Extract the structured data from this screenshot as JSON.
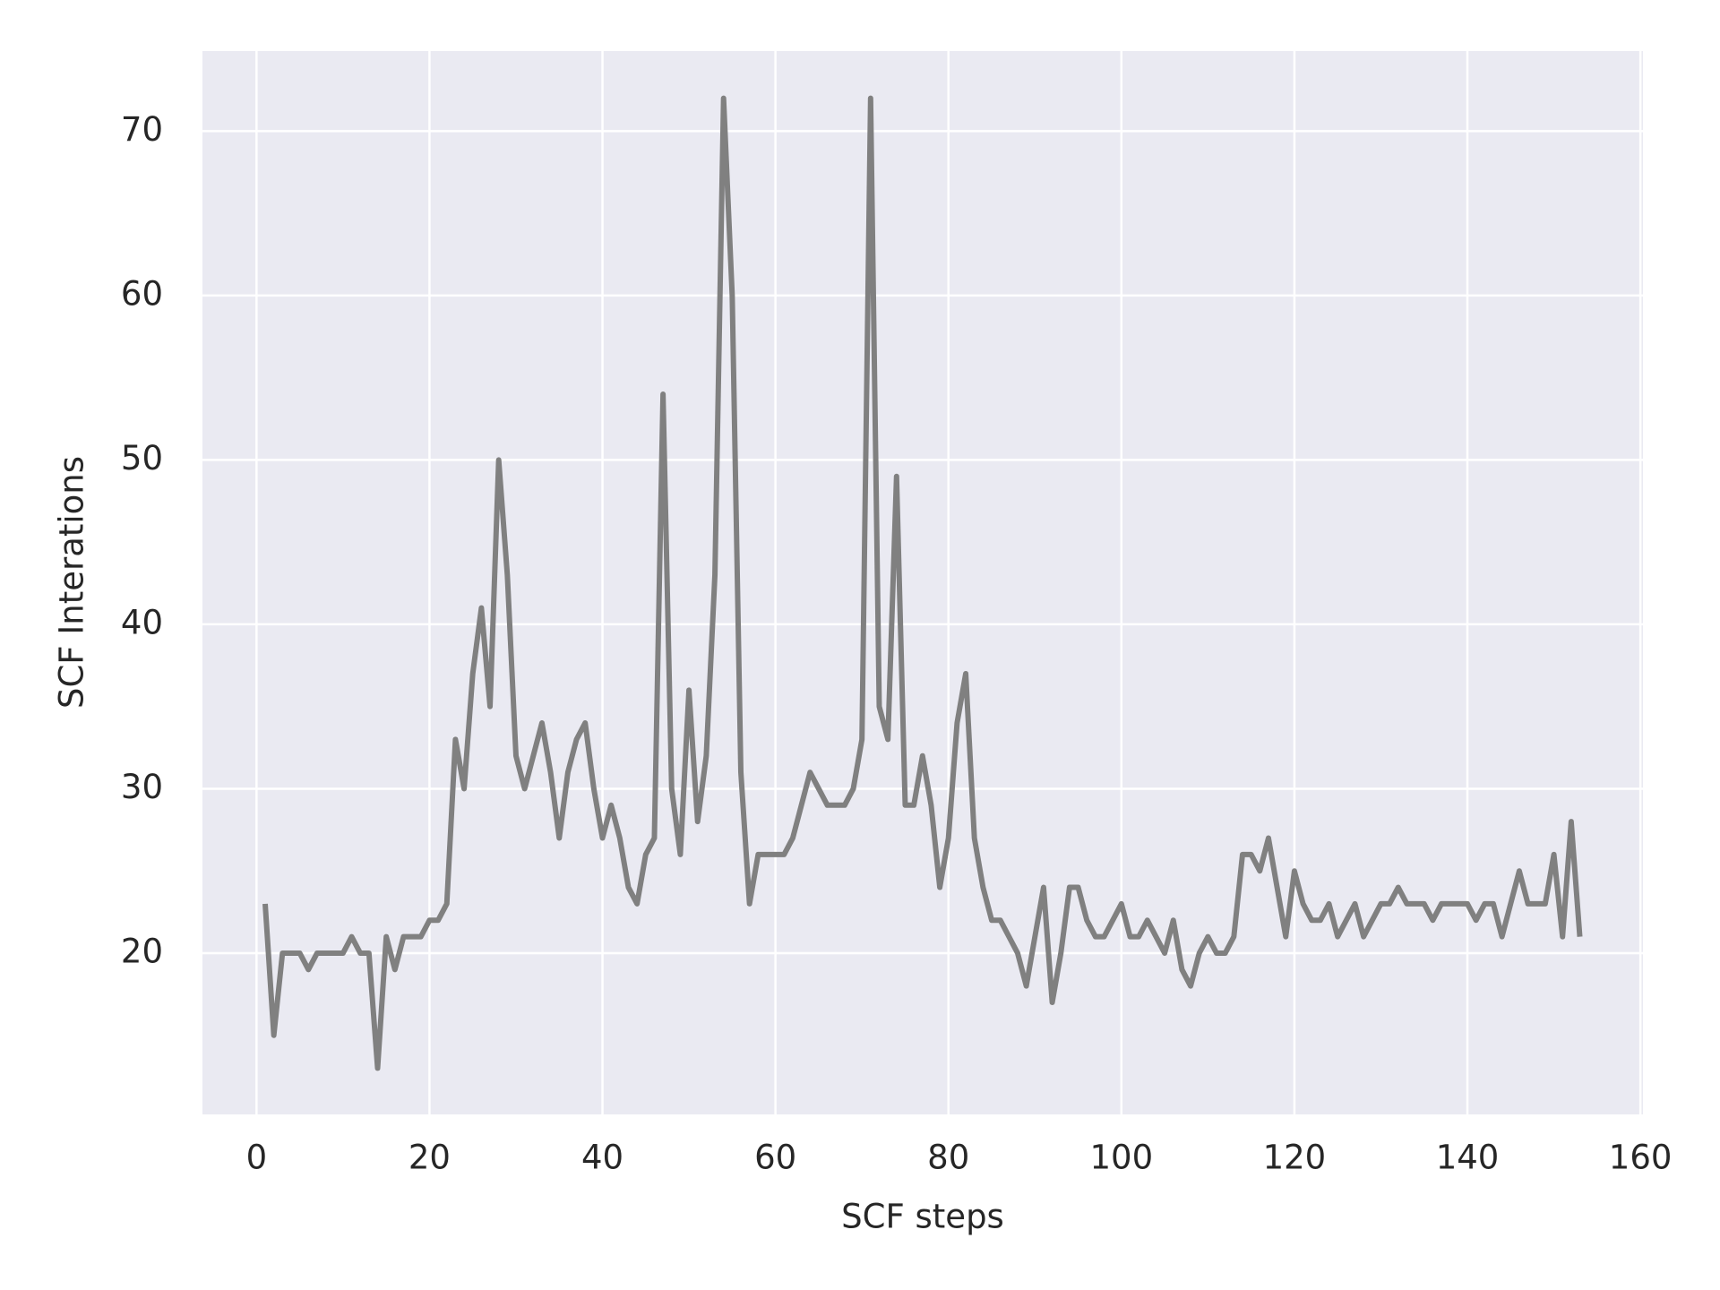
{
  "chart_data": {
    "type": "line",
    "xlabel": "SCF steps",
    "ylabel": "SCF Interations",
    "x": [
      1,
      2,
      3,
      4,
      5,
      6,
      7,
      8,
      9,
      10,
      11,
      12,
      13,
      14,
      15,
      16,
      17,
      18,
      19,
      20,
      21,
      22,
      23,
      24,
      25,
      26,
      27,
      28,
      29,
      30,
      31,
      32,
      33,
      34,
      35,
      36,
      37,
      38,
      39,
      40,
      41,
      42,
      43,
      44,
      45,
      46,
      47,
      48,
      49,
      50,
      51,
      52,
      53,
      54,
      55,
      56,
      57,
      58,
      59,
      60,
      61,
      62,
      63,
      64,
      65,
      66,
      67,
      68,
      69,
      70,
      71,
      72,
      73,
      74,
      75,
      76,
      77,
      78,
      79,
      80,
      81,
      82,
      83,
      84,
      85,
      86,
      87,
      88,
      89,
      90,
      91,
      92,
      93,
      94,
      95,
      96,
      97,
      98,
      99,
      100,
      101,
      102,
      103,
      104,
      105,
      106,
      107,
      108,
      109,
      110,
      111,
      112,
      113,
      114,
      115,
      116,
      117,
      118,
      119,
      120,
      121,
      122,
      123,
      124,
      125,
      126,
      127,
      128,
      129,
      130,
      131,
      132,
      133,
      134,
      135,
      136,
      137,
      138,
      139,
      140,
      141,
      142,
      143,
      144,
      145,
      146,
      147,
      148,
      149,
      150,
      151,
      152,
      153
    ],
    "values": [
      23,
      15,
      20,
      20,
      20,
      19,
      20,
      20,
      20,
      20,
      21,
      20,
      20,
      13,
      21,
      19,
      21,
      21,
      21,
      22,
      22,
      23,
      33,
      30,
      37,
      41,
      35,
      50,
      43,
      32,
      30,
      32,
      34,
      31,
      27,
      31,
      33,
      34,
      30,
      27,
      29,
      27,
      24,
      23,
      26,
      27,
      54,
      30,
      26,
      36,
      28,
      32,
      43,
      72,
      60,
      31,
      23,
      26,
      26,
      26,
      26,
      27,
      29,
      31,
      30,
      29,
      29,
      29,
      30,
      33,
      72,
      35,
      33,
      49,
      29,
      29,
      32,
      29,
      24,
      27,
      34,
      37,
      27,
      24,
      22,
      22,
      21,
      20,
      18,
      21,
      24,
      17,
      20,
      24,
      24,
      22,
      21,
      21,
      22,
      23,
      21,
      21,
      22,
      21,
      20,
      22,
      19,
      18,
      20,
      21,
      20,
      20,
      21,
      26,
      26,
      25,
      27,
      24,
      21,
      25,
      23,
      22,
      22,
      23,
      21,
      22,
      23,
      21,
      22,
      23,
      23,
      24,
      23,
      23,
      23,
      22,
      23,
      23,
      23,
      23,
      22,
      23,
      23,
      21,
      23,
      25,
      23,
      23,
      23,
      26,
      21,
      28,
      21
    ],
    "color": "#808080",
    "xlim": [
      -6.25,
      160.3
    ],
    "ylim": [
      10.19,
      74.87
    ],
    "xticks": [
      0,
      20,
      40,
      60,
      80,
      100,
      120,
      140,
      160
    ],
    "yticks": [
      20,
      30,
      40,
      50,
      60,
      70
    ],
    "grid": true
  }
}
